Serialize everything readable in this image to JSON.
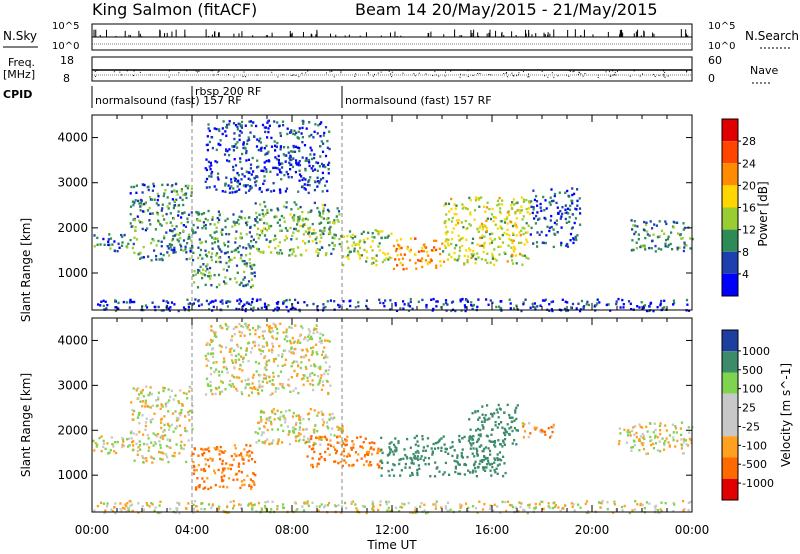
{
  "header": {
    "station": "King Salmon (fitACF)",
    "beam_date": "Beam 14 20/May/2015 - 21/May/2015"
  },
  "params": {
    "nsky_label": "N.Sky",
    "nsearch_label": "N.Search",
    "freq_label": "Freq.",
    "freq_unit": "[MHz]",
    "nave_label": "Nave",
    "cpid_label": "CPID",
    "left_top_ticks": [
      "10^5",
      "10^0"
    ],
    "right_top_ticks": [
      "10^5",
      "10^0"
    ],
    "freq_ticks": [
      "18",
      "8"
    ],
    "nave_ticks": [
      "60",
      "0"
    ]
  },
  "cpid": {
    "segments": [
      {
        "label": "normalsound (fast) 157 RF",
        "start": 0.0,
        "end": 4.0
      },
      {
        "label": "rbsp 200 RF",
        "start": 4.0,
        "end": 10.0
      },
      {
        "label": "normalsound (fast) 157 RF",
        "start": 10.0,
        "end": 24.0
      }
    ]
  },
  "axes": {
    "ylabel": "Slant Range [km]",
    "xlabel": "Time UT",
    "x_ticks": [
      "00:00",
      "04:00",
      "08:00",
      "12:00",
      "16:00",
      "20:00",
      "00:00"
    ],
    "y_ticks": [
      "1000",
      "2000",
      "3000",
      "4000"
    ]
  },
  "power_bar": {
    "label": "Power [dB]",
    "ticks": [
      "4",
      "8",
      "12",
      "16",
      "20",
      "24",
      "28"
    ],
    "colors": [
      "#0000ff",
      "#1e3fb0",
      "#2e8b57",
      "#9acd32",
      "#ffd700",
      "#ff8c00",
      "#ff4500",
      "#e00000"
    ]
  },
  "velocity_bar": {
    "label": "Velocity [m s^-1]",
    "ticks": [
      "1000",
      "500",
      "100",
      "25",
      "-25",
      "-100",
      "-500",
      "-1000"
    ],
    "colors": [
      "#1f3fa0",
      "#3c8c6a",
      "#7fd34e",
      "#c8c8c8",
      "#c8c8c8",
      "#ffa020",
      "#ff6a00",
      "#e00000"
    ]
  },
  "chart_data": [
    {
      "type": "heatmap",
      "title": "Power",
      "xlabel": "Time UT",
      "ylabel": "Slant Range [km]",
      "xlim": [
        0,
        24
      ],
      "ylim": [
        180,
        4500
      ],
      "colorbar": {
        "label": "Power [dB]",
        "range": [
          0,
          30
        ]
      },
      "echo_regions": [
        {
          "t0": 0.0,
          "t1": 1.5,
          "r0": 1500,
          "r1": 1900,
          "power": 8
        },
        {
          "t0": 1.5,
          "t1": 4.0,
          "r0": 1300,
          "r1": 3000,
          "power": 9
        },
        {
          "t0": 4.0,
          "t1": 6.5,
          "r0": 700,
          "r1": 2400,
          "power": 10
        },
        {
          "t0": 4.5,
          "t1": 9.5,
          "r0": 2800,
          "r1": 4400,
          "power": 6
        },
        {
          "t0": 6.5,
          "t1": 10.0,
          "r0": 1400,
          "r1": 2600,
          "power": 12
        },
        {
          "t0": 10.0,
          "t1": 12.0,
          "r0": 1200,
          "r1": 2000,
          "power": 14
        },
        {
          "t0": 12.0,
          "t1": 14.0,
          "r0": 1100,
          "r1": 1800,
          "power": 22
        },
        {
          "t0": 14.0,
          "t1": 17.5,
          "r0": 1200,
          "r1": 2700,
          "power": 16
        },
        {
          "t0": 17.5,
          "t1": 19.5,
          "r0": 1600,
          "r1": 2900,
          "power": 7
        },
        {
          "t0": 21.5,
          "t1": 24.0,
          "r0": 1500,
          "r1": 2200,
          "power": 10
        },
        {
          "t0": 0.0,
          "t1": 24.0,
          "r0": 180,
          "r1": 450,
          "power": 5
        }
      ]
    },
    {
      "type": "heatmap",
      "title": "Velocity",
      "xlabel": "Time UT",
      "ylabel": "Slant Range [km]",
      "xlim": [
        0,
        24
      ],
      "ylim": [
        180,
        4500
      ],
      "colorbar": {
        "label": "Velocity [m s^-1]",
        "range": [
          -1000,
          1000
        ]
      },
      "echo_regions": [
        {
          "t0": 0.0,
          "t1": 1.5,
          "r0": 1500,
          "r1": 1900,
          "velocity": 0
        },
        {
          "t0": 1.5,
          "t1": 4.0,
          "r0": 1300,
          "r1": 3000,
          "velocity": 0
        },
        {
          "t0": 4.0,
          "t1": 6.5,
          "r0": 700,
          "r1": 1700,
          "velocity": -300
        },
        {
          "t0": 4.5,
          "t1": 9.5,
          "r0": 2800,
          "r1": 4400,
          "velocity": 0
        },
        {
          "t0": 6.5,
          "t1": 10.0,
          "r0": 1700,
          "r1": 2500,
          "velocity": 0
        },
        {
          "t0": 8.5,
          "t1": 11.5,
          "r0": 1200,
          "r1": 1900,
          "velocity": -300
        },
        {
          "t0": 11.5,
          "t1": 16.5,
          "r0": 1000,
          "r1": 1900,
          "velocity": 400
        },
        {
          "t0": 15.0,
          "t1": 17.0,
          "r0": 1700,
          "r1": 2600,
          "velocity": 400
        },
        {
          "t0": 17.0,
          "t1": 18.5,
          "r0": 1800,
          "r1": 2200,
          "velocity": -100
        },
        {
          "t0": 21.0,
          "t1": 24.0,
          "r0": 1500,
          "r1": 2200,
          "velocity": 0
        },
        {
          "t0": 0.0,
          "t1": 24.0,
          "r0": 180,
          "r1": 450,
          "velocity": 0
        }
      ]
    }
  ]
}
